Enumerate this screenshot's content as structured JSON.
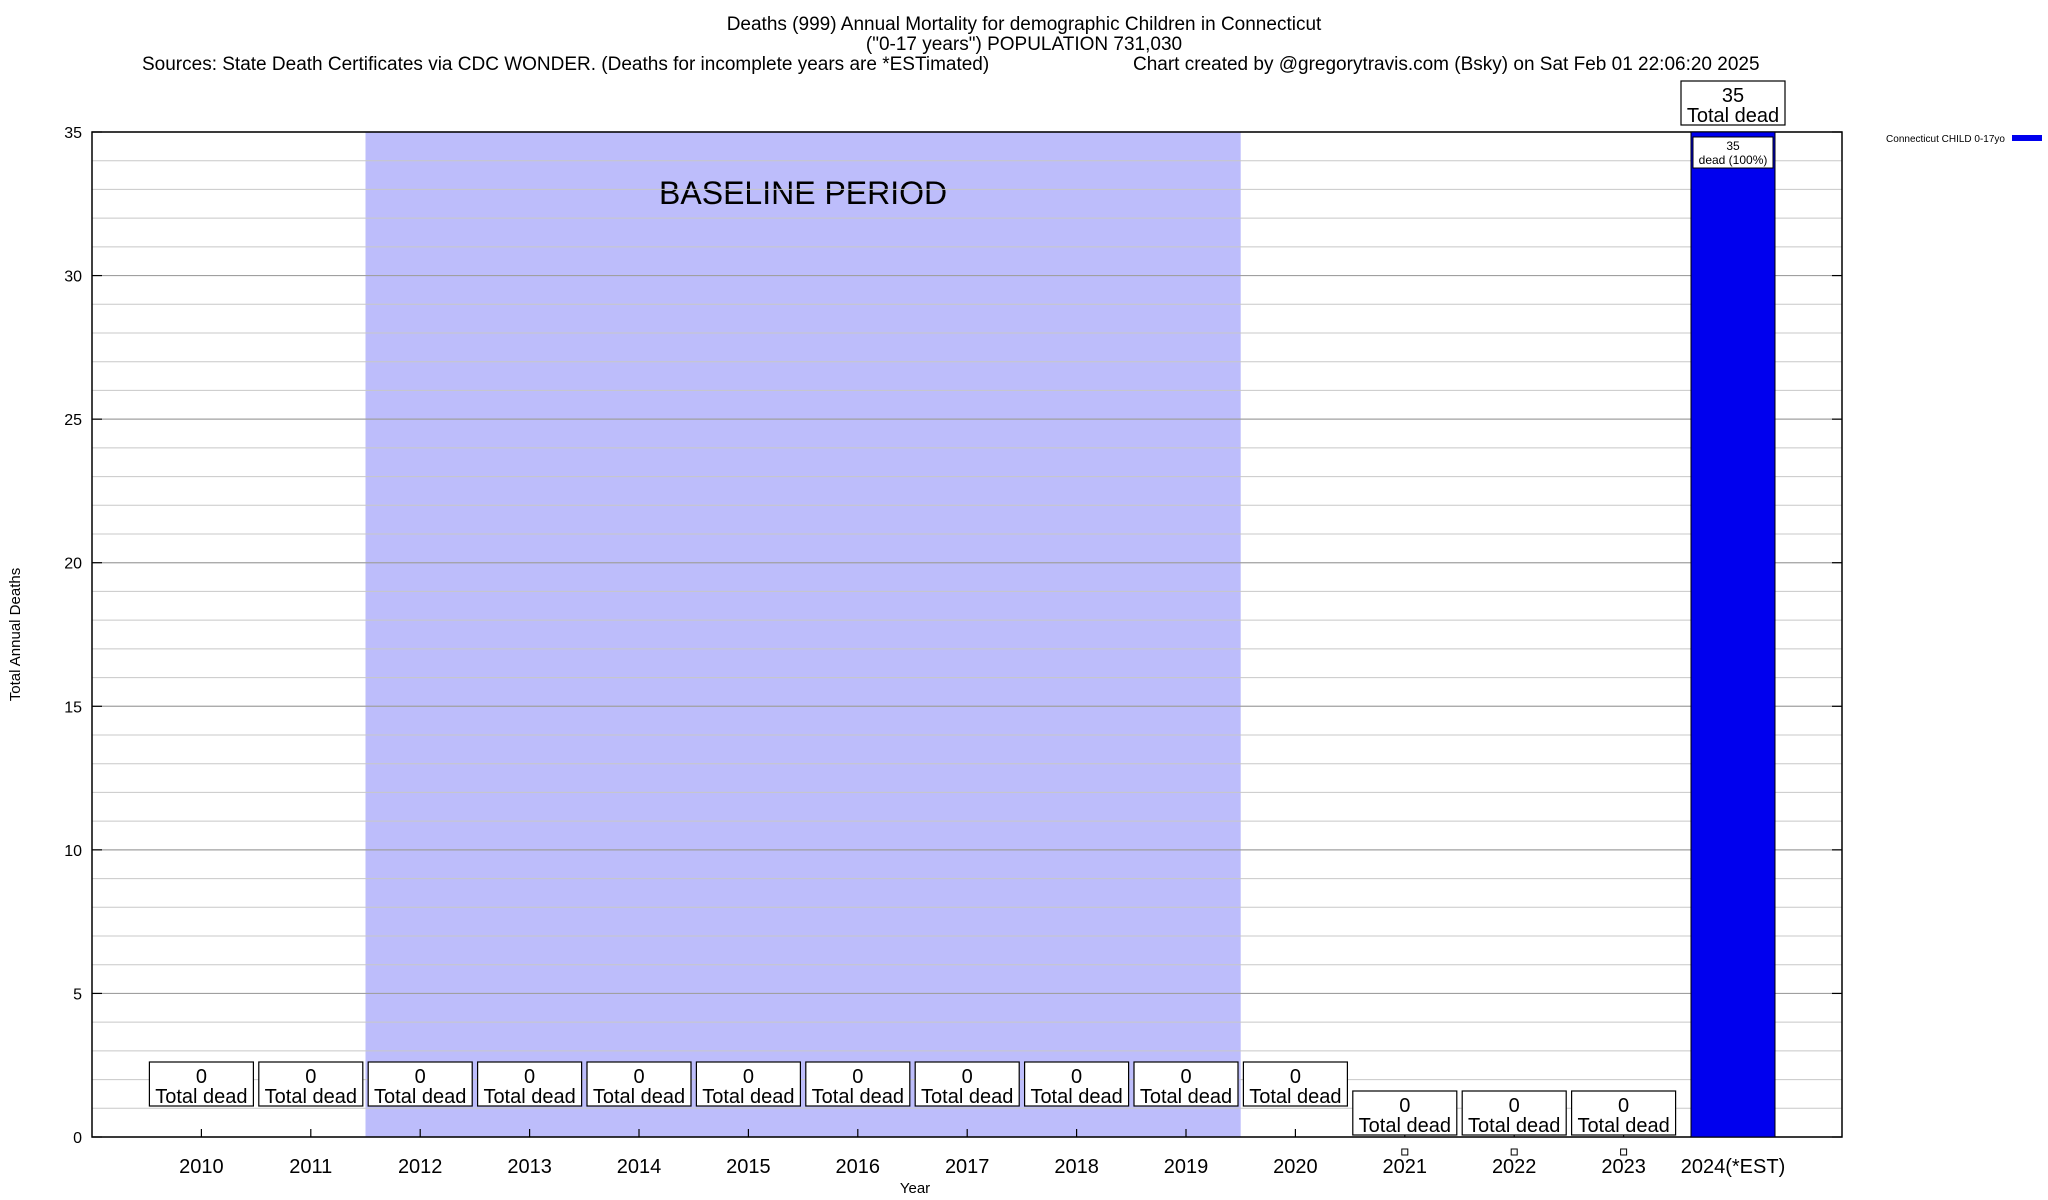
{
  "header": {
    "title": "Deaths (999) Annual Mortality for demographic Children in Connecticut",
    "subtitle": "(\"0-17 years\") POPULATION 731,030",
    "sources": "Sources: State Death Certificates via CDC WONDER. (Deaths for incomplete years are *ESTimated)",
    "credit": "Chart created by @gregorytravis.com (Bsky) on Sat Feb 01 22:06:20 2025"
  },
  "chart_data": {
    "type": "bar",
    "categories": [
      "2010",
      "2011",
      "2012",
      "2013",
      "2014",
      "2015",
      "2016",
      "2017",
      "2018",
      "2019",
      "2020",
      "2021",
      "2022",
      "2023",
      "2024(*EST)"
    ],
    "values": [
      0,
      0,
      0,
      0,
      0,
      0,
      0,
      0,
      0,
      0,
      0,
      0,
      0,
      0,
      35
    ],
    "total_label": "Total dead",
    "segment_label": "dead (100%)",
    "xlabel": "Year",
    "ylabel": "Total Annual Deaths",
    "ylim": [
      0,
      35
    ],
    "yticks": [
      0,
      5,
      10,
      15,
      20,
      25,
      30,
      35
    ],
    "minor_step": 1,
    "grid": true,
    "series": [
      {
        "name": "Connecticut CHILD 0-17yo",
        "values": [
          0,
          0,
          0,
          0,
          0,
          0,
          0,
          0,
          0,
          0,
          0,
          0,
          0,
          0,
          35
        ],
        "color": "#0000ee"
      }
    ],
    "legend_position": "top-right",
    "baseline": {
      "label": "BASELINE PERIOD",
      "from": "2012",
      "to": "2019",
      "color": "#bdbdfb"
    }
  }
}
